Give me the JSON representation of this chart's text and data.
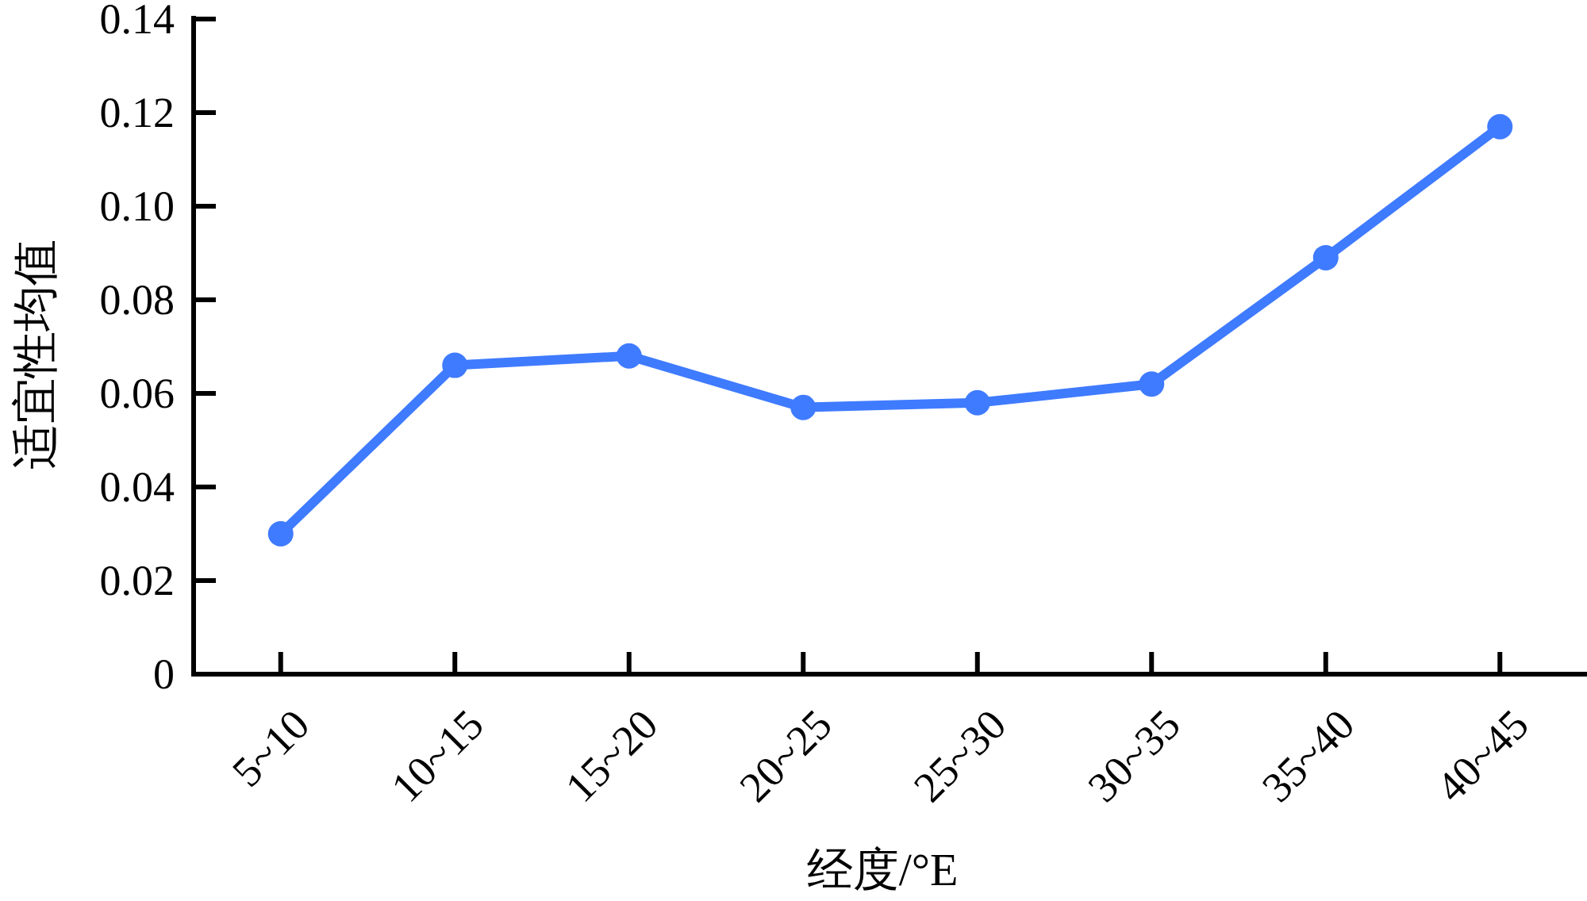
{
  "chart_data": {
    "type": "line",
    "xlabel": "经度/°E",
    "ylabel": "适宜性均值",
    "categories": [
      "5~10",
      "10~15",
      "15~20",
      "20~25",
      "25~30",
      "30~35",
      "35~40",
      "40~45"
    ],
    "series": [
      {
        "color": "#3f7bff",
        "values": [
          0.03,
          0.066,
          0.068,
          0.057,
          0.058,
          0.062,
          0.089,
          0.117
        ]
      }
    ],
    "ylim": [
      0,
      0.14
    ],
    "yticks": [
      {
        "value": 0,
        "label": "0"
      },
      {
        "value": 0.02,
        "label": "0.02"
      },
      {
        "value": 0.04,
        "label": "0.04"
      },
      {
        "value": 0.06,
        "label": "0.06"
      },
      {
        "value": 0.08,
        "label": "0.08"
      },
      {
        "value": 0.1,
        "label": "0.10"
      },
      {
        "value": 0.12,
        "label": "0.12"
      },
      {
        "value": 0.14,
        "label": "0.14"
      }
    ],
    "marker": "circle",
    "line_style": "solid"
  }
}
